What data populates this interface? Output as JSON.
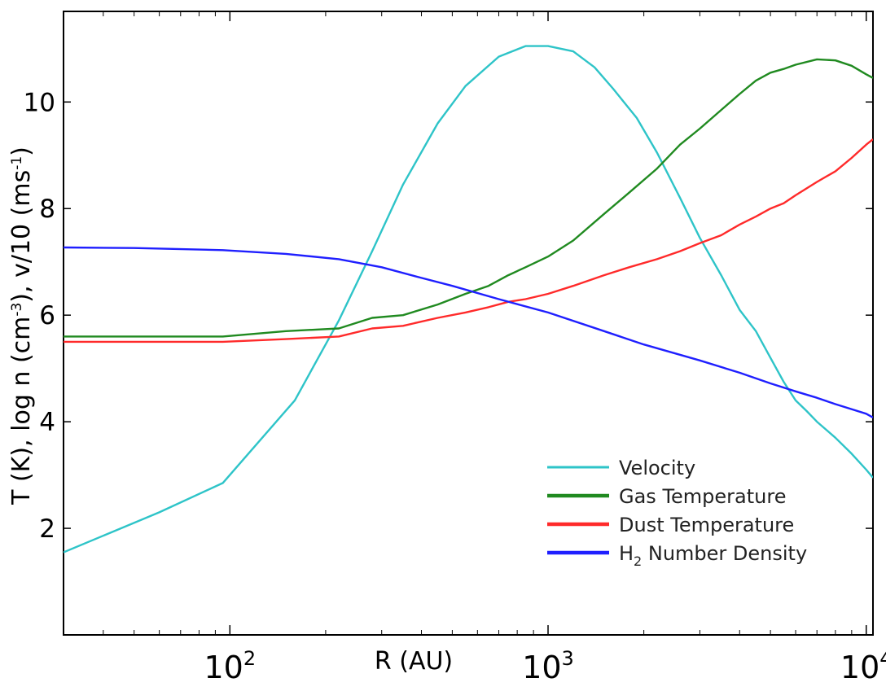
{
  "chart_data": {
    "type": "line",
    "title": "",
    "xlabel": "R (AU)",
    "ylabel_parts": [
      "T (K),  log n (cm",
      "-3",
      "),    v/10 (ms",
      "-1",
      ")"
    ],
    "xscale": "log",
    "xlim": [
      30,
      10500
    ],
    "ylim": [
      0,
      11.7
    ],
    "xticks": [
      {
        "value": 100,
        "base": "10",
        "exp": "2"
      },
      {
        "value": 1000,
        "base": "10",
        "exp": "3"
      },
      {
        "value": 10000,
        "base": "10",
        "exp": "4"
      }
    ],
    "yticks": [
      2,
      4,
      6,
      8,
      10
    ],
    "grid": false,
    "legend_position": "lower-right",
    "series": [
      {
        "name": "Velocity",
        "color": "#2ec4c8",
        "x": [
          30,
          60,
          95,
          160,
          220,
          280,
          350,
          450,
          550,
          700,
          850,
          1000,
          1200,
          1400,
          1600,
          1900,
          2200,
          2600,
          3000,
          3500,
          4000,
          4500,
          5000,
          5500,
          6000,
          6500,
          7000,
          8000,
          9000,
          10000,
          10500
        ],
        "y": [
          1.55,
          2.3,
          2.85,
          4.4,
          5.9,
          7.2,
          8.45,
          9.6,
          10.3,
          10.85,
          11.05,
          11.05,
          10.95,
          10.65,
          10.25,
          9.7,
          9.05,
          8.2,
          7.45,
          6.75,
          6.1,
          5.7,
          5.2,
          4.75,
          4.4,
          4.2,
          4.0,
          3.7,
          3.4,
          3.1,
          2.95
        ]
      },
      {
        "name": "Gas Temperature",
        "color": "#208a20",
        "x": [
          30,
          50,
          95,
          150,
          220,
          280,
          350,
          450,
          550,
          650,
          750,
          850,
          1000,
          1200,
          1500,
          1800,
          2200,
          2600,
          3000,
          3500,
          4000,
          4500,
          5000,
          5500,
          6000,
          7000,
          8000,
          9000,
          10000,
          10500
        ],
        "y": [
          5.6,
          5.6,
          5.6,
          5.7,
          5.75,
          5.95,
          6.0,
          6.2,
          6.4,
          6.55,
          6.75,
          6.9,
          7.1,
          7.4,
          7.9,
          8.3,
          8.75,
          9.2,
          9.5,
          9.85,
          10.15,
          10.4,
          10.55,
          10.62,
          10.7,
          10.8,
          10.78,
          10.68,
          10.52,
          10.45
        ]
      },
      {
        "name": "Dust Temperature",
        "color": "#ff2a2a",
        "x": [
          30,
          95,
          150,
          220,
          280,
          350,
          450,
          550,
          650,
          750,
          850,
          1000,
          1200,
          1500,
          1800,
          2200,
          2600,
          3000,
          3500,
          4000,
          4500,
          5000,
          5500,
          6000,
          7000,
          8000,
          9000,
          10000,
          10500
        ],
        "y": [
          5.5,
          5.5,
          5.55,
          5.6,
          5.75,
          5.8,
          5.95,
          6.05,
          6.15,
          6.25,
          6.3,
          6.4,
          6.55,
          6.75,
          6.9,
          7.05,
          7.2,
          7.35,
          7.5,
          7.7,
          7.85,
          8.0,
          8.1,
          8.25,
          8.5,
          8.7,
          8.95,
          9.2,
          9.3
        ]
      },
      {
        "name": "H",
        "name_sub": "2",
        "name_rest": " Number Density",
        "color": "#1f1fff",
        "x": [
          30,
          50,
          95,
          150,
          220,
          300,
          400,
          500,
          700,
          1000,
          1500,
          2000,
          3000,
          4000,
          5000,
          6000,
          7000,
          8000,
          10000,
          10500
        ],
        "y": [
          7.27,
          7.26,
          7.22,
          7.15,
          7.05,
          6.9,
          6.7,
          6.55,
          6.3,
          6.05,
          5.7,
          5.45,
          5.15,
          4.92,
          4.72,
          4.57,
          4.45,
          4.33,
          4.15,
          4.08
        ]
      }
    ]
  }
}
